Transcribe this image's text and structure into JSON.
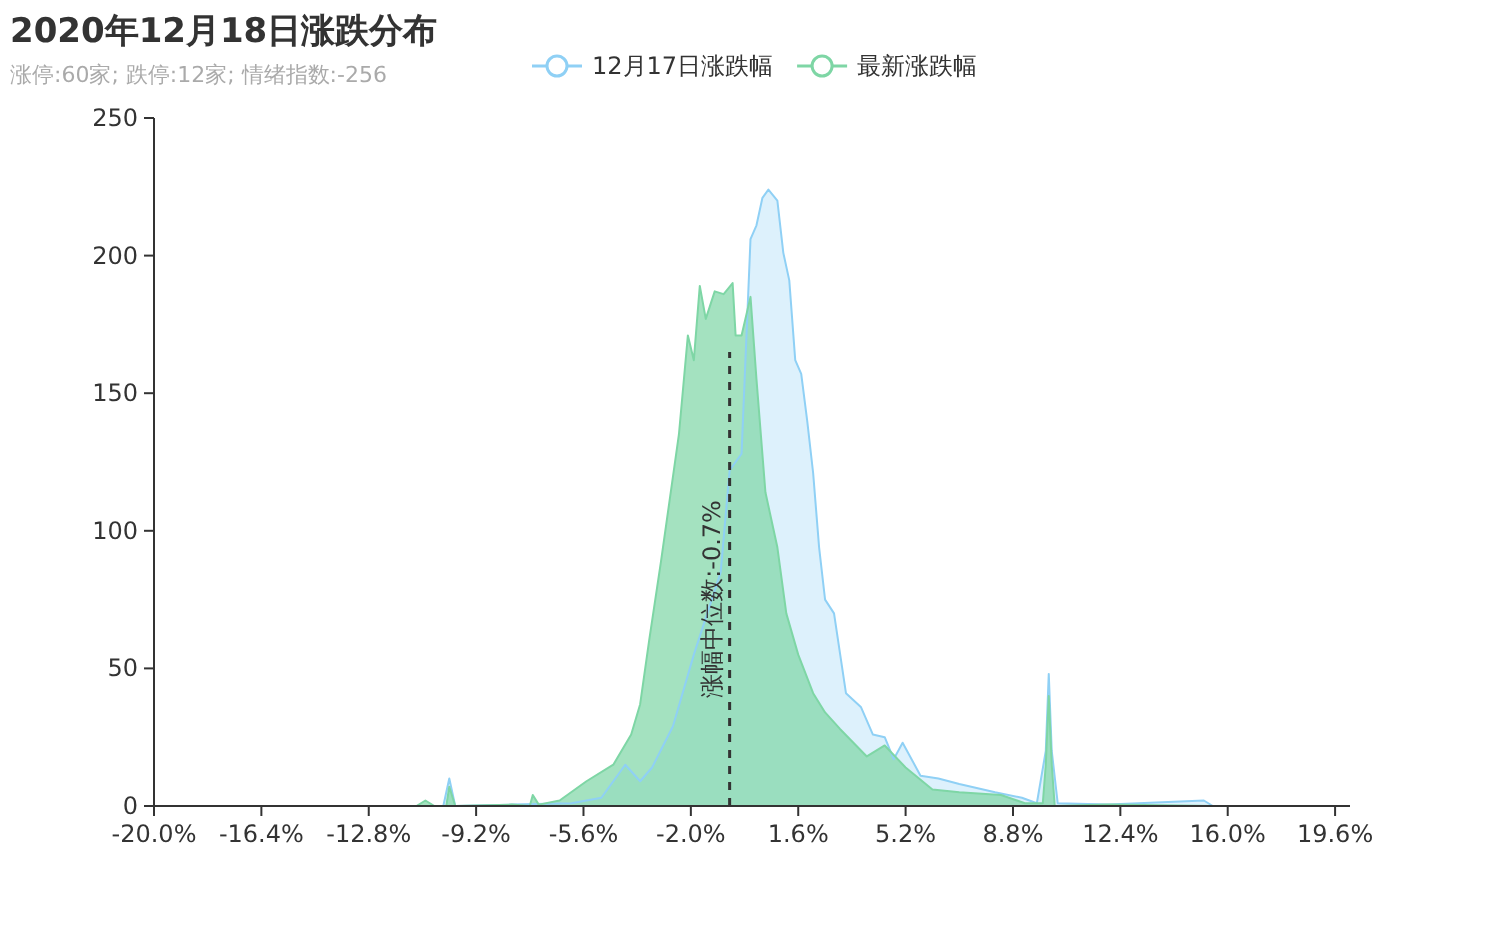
{
  "chart_data": {
    "type": "area",
    "title": "2020年12月18日涨跌分布",
    "subtitle": "涨停:60家; 跌停:12家; 情绪指数:-256",
    "xlim": [
      -20,
      20.1
    ],
    "xticks": [
      {
        "value": -20,
        "label": "-20.0%"
      },
      {
        "value": -16.4,
        "label": "-16.4%"
      },
      {
        "value": -12.8,
        "label": "-12.8%"
      },
      {
        "value": -9.2,
        "label": "-9.2%"
      },
      {
        "value": -5.6,
        "label": "-5.6%"
      },
      {
        "value": -2,
        "label": "-2.0%"
      },
      {
        "value": 1.6,
        "label": "1.6%"
      },
      {
        "value": 5.2,
        "label": "5.2%"
      },
      {
        "value": 8.8,
        "label": "8.8%"
      },
      {
        "value": 12.4,
        "label": "12.4%"
      },
      {
        "value": 16,
        "label": "16.0%"
      },
      {
        "value": 19.6,
        "label": "19.6%"
      }
    ],
    "ylim": [
      0,
      250
    ],
    "yticks": [
      0,
      50,
      100,
      150,
      200,
      250
    ],
    "legend": "top",
    "grid": false,
    "series": [
      {
        "name": "12月17日涨跌幅",
        "color": "#8fd0f5",
        "x": [
          -20,
          -10.3,
          -10.1,
          -9.9,
          -8,
          -6,
          -5,
          -4.6,
          -4.2,
          -3.7,
          -3.3,
          -2.6,
          -1.9,
          -1.0,
          -0.7,
          -0.3,
          0.0,
          0.2,
          0.4,
          0.6,
          0.9,
          1.1,
          1.3,
          1.5,
          1.7,
          1.9,
          2.1,
          2.3,
          2.5,
          2.8,
          3.2,
          3.7,
          4.1,
          4.5,
          4.8,
          5.1,
          5.7,
          6.3,
          7.0,
          8.2,
          9.1,
          9.6,
          9.9,
          10.0,
          10.1,
          10.3,
          12,
          15.2,
          15.5
        ],
        "values": [
          0,
          0,
          10,
          0,
          0.5,
          1,
          3,
          9,
          15,
          9,
          14,
          29,
          55,
          85,
          122,
          128,
          206,
          211,
          221,
          224,
          220,
          201,
          191,
          162,
          157,
          140,
          121,
          94,
          75,
          70,
          41,
          36,
          26,
          25,
          17,
          23,
          11,
          10,
          8,
          5,
          3,
          1,
          20,
          48,
          20,
          1,
          0.5,
          2,
          0
        ]
      },
      {
        "name": "最新涨跌幅",
        "color": "#7ed6a5",
        "x": [
          -20,
          -11.2,
          -10.9,
          -10.6,
          -10.2,
          -10.1,
          -9.9,
          -8,
          -7.4,
          -7.3,
          -7.1,
          -6.4,
          -5.5,
          -4.6,
          -4.0,
          -3.7,
          -3.4,
          -3.0,
          -2.4,
          -2.1,
          -1.9,
          -1.7,
          -1.5,
          -1.2,
          -0.9,
          -0.6,
          -0.5,
          -0.3,
          0.0,
          0.2,
          0.5,
          0.9,
          1.2,
          1.6,
          2.1,
          2.5,
          3.0,
          3.9,
          4.5,
          5.2,
          6.1,
          7.0,
          8.4,
          9.2,
          9.8,
          9.9,
          10.0,
          10.1,
          10.2,
          12,
          15.5
        ],
        "values": [
          0,
          0,
          2,
          0,
          0,
          7,
          0,
          0.5,
          0,
          4,
          0.5,
          2,
          9,
          15,
          26,
          37,
          60,
          89,
          135,
          171,
          162,
          189,
          177,
          187,
          186,
          190,
          171,
          171,
          185,
          155,
          114,
          94,
          70,
          55,
          41,
          34,
          28,
          18,
          22,
          14,
          6,
          5,
          4,
          1,
          1,
          15,
          40,
          15,
          0,
          0.5,
          0
        ]
      }
    ],
    "ref_lines": [
      {
        "axis": "x",
        "value": -0.7,
        "label": "涨幅中位数:-0.7%",
        "color": "#333333",
        "line_style": "dashed"
      }
    ]
  }
}
